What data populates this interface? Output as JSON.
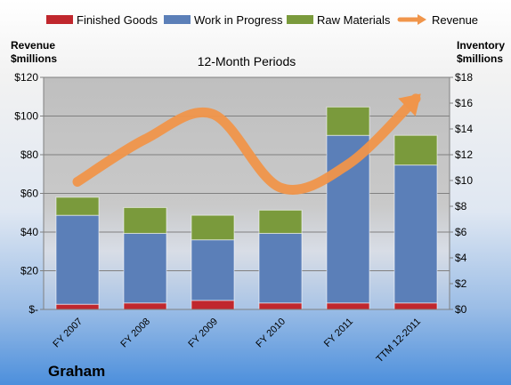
{
  "company": "Graham",
  "chart_data": {
    "type": "bar",
    "stacked": true,
    "title": "12-Month Periods",
    "categories": [
      "FY 2007",
      "FY 2008",
      "FY 2009",
      "FY 2010",
      "FY 2011",
      "TTM 12-2011"
    ],
    "series": [
      {
        "name": "Finished Goods",
        "axis": "right",
        "color": "#c0272d",
        "values": [
          0.4,
          0.5,
          0.7,
          0.5,
          0.5,
          0.5
        ]
      },
      {
        "name": "Work in Progress",
        "axis": "right",
        "color": "#5b7fb8",
        "values": [
          6.9,
          5.4,
          4.7,
          5.4,
          13.0,
          10.7
        ]
      },
      {
        "name": "Raw Materials",
        "axis": "right",
        "color": "#7a9a3c",
        "values": [
          1.4,
          2.0,
          1.9,
          1.8,
          2.2,
          2.3
        ]
      },
      {
        "name": "Revenue",
        "type": "line",
        "axis": "left",
        "color": "#f0954a",
        "values": [
          66,
          88,
          101,
          63,
          75,
          109
        ]
      }
    ],
    "left_axis": {
      "label": [
        "Revenue",
        "$millions"
      ],
      "ticks": [
        "$-",
        "$20",
        "$40",
        "$60",
        "$80",
        "$100",
        "$120"
      ],
      "ylim": [
        0,
        120
      ]
    },
    "right_axis": {
      "label": [
        "Inventory",
        "$millions"
      ],
      "ticks": [
        "$0",
        "$2",
        "$4",
        "$6",
        "$8",
        "$10",
        "$12",
        "$14",
        "$16",
        "$18"
      ],
      "ylim": [
        0,
        18
      ]
    },
    "grid": true,
    "legend": "top"
  }
}
